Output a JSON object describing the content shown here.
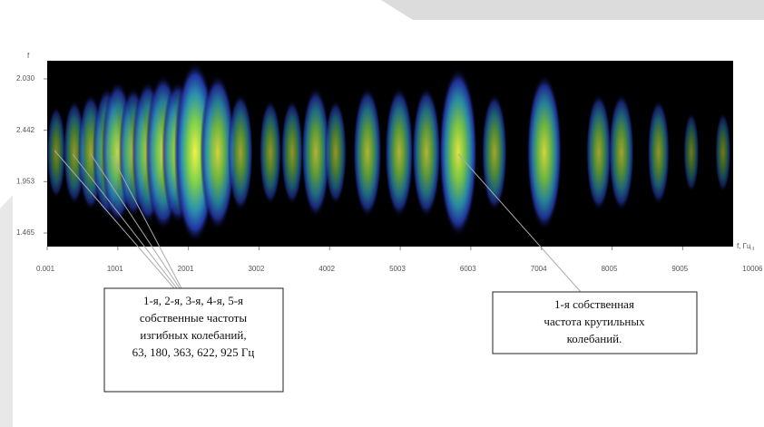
{
  "chart_data": {
    "type": "spectrogram",
    "y_label": "f",
    "x_label": "f, Гц",
    "xlim": [
      0,
      9720
    ],
    "xticks": [
      {
        "value": 0.001,
        "label": "0.001"
      },
      1001,
      2001,
      3002,
      4002,
      5003,
      6003,
      7004,
      8005,
      9005,
      10006
    ],
    "yticks": [
      {
        "value": 2.03,
        "label": "2.030"
      },
      2.442,
      1.953,
      1.465
    ],
    "x": [
      128,
      385,
      617,
      848,
      1000,
      1221,
      1427,
      1645,
      1851,
      2095,
      2416,
      2738,
      3162,
      3470,
      3805,
      4087,
      4537,
      4987,
      5373,
      5823,
      6337,
      7044,
      7815,
      8136,
      8663,
      9126,
      9576
    ],
    "values": [
      0.3,
      0.4,
      0.5,
      0.6,
      0.7,
      0.6,
      0.7,
      0.8,
      0.7,
      1.0,
      0.8,
      0.5,
      0.4,
      0.4,
      0.6,
      0.4,
      0.6,
      0.6,
      0.6,
      0.9,
      0.5,
      0.8,
      0.5,
      0.5,
      0.4,
      0.2,
      0.2
    ],
    "annotations": [
      {
        "lines": [
          "1-я, 2-я, 3-я, 4-я, 5-я",
          "собственные частоты",
          "изгибных колебаний,",
          "63, 180, 363, 622, 925 Гц"
        ]
      },
      {
        "lines": [
          "1-я собственная",
          "частота крутильных",
          "колебаний."
        ]
      }
    ]
  }
}
